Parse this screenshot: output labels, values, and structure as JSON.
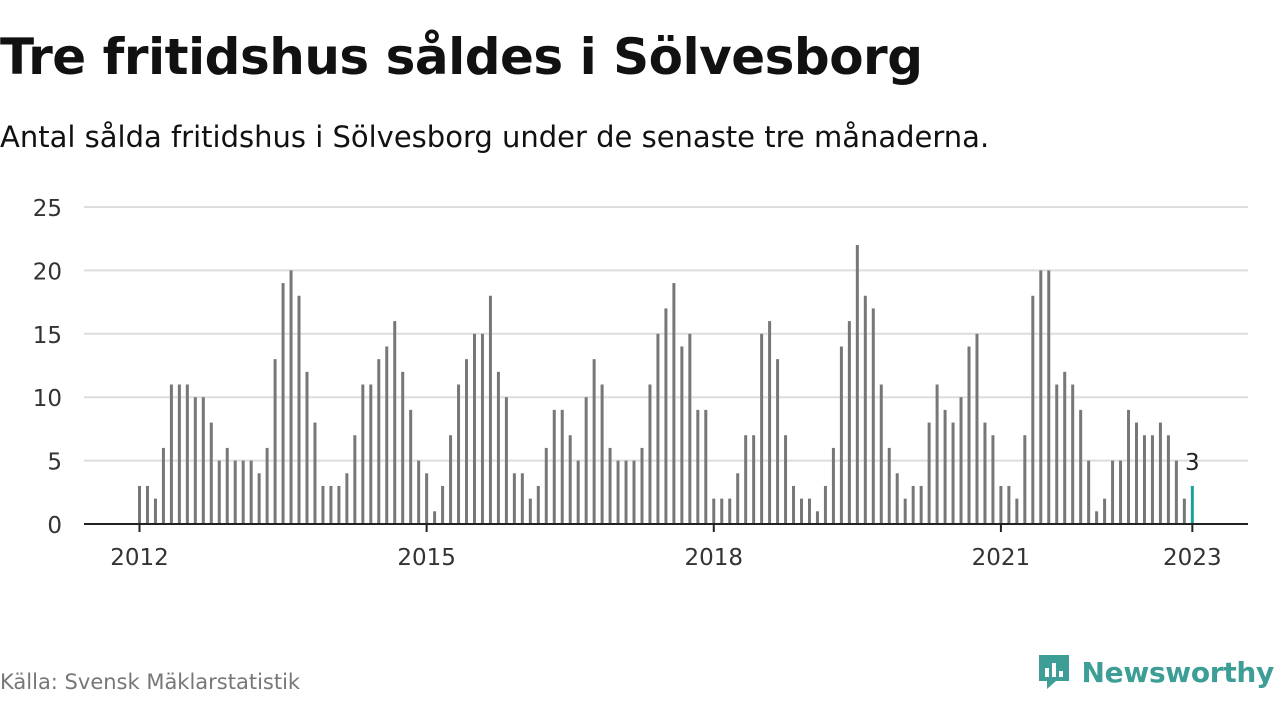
{
  "header": {
    "title": "Tre fritidshus såldes i Sölvesborg",
    "subtitle": "Antal sålda fritidshus i Sölvesborg under de senaste tre månaderna."
  },
  "footer": {
    "source": "Källa: Svensk Mäklarstatistik",
    "brand": "Newsworthy"
  },
  "colors": {
    "bar": "#777777",
    "highlight": "#1aa19a",
    "grid": "#dddddd",
    "axis": "#222222",
    "brand": "#3c9e96"
  },
  "icons": {
    "brand_logo": "newsworthy-logo-icon"
  },
  "chart_data": {
    "type": "bar",
    "title": "Tre fritidshus såldes i Sölvesborg",
    "subtitle": "Antal sålda fritidshus i Sölvesborg under de senaste tre månaderna.",
    "xlabel": "",
    "ylabel": "",
    "ylim": [
      0,
      25
    ],
    "yticks": [
      0,
      5,
      10,
      15,
      20,
      25
    ],
    "grid": true,
    "legend": "none",
    "frequency": "monthly",
    "x_start": "2012-01",
    "x_end": "2023-01",
    "xtick_labels": [
      "2012",
      "2015",
      "2018",
      "2021",
      "2023"
    ],
    "values": [
      3,
      3,
      2,
      6,
      11,
      11,
      11,
      10,
      10,
      8,
      5,
      6,
      5,
      5,
      5,
      4,
      6,
      13,
      19,
      20,
      18,
      12,
      8,
      3,
      3,
      3,
      4,
      7,
      11,
      11,
      13,
      14,
      16,
      12,
      9,
      5,
      4,
      1,
      3,
      7,
      11,
      13,
      15,
      15,
      18,
      12,
      10,
      4,
      4,
      2,
      3,
      6,
      9,
      9,
      7,
      5,
      10,
      13,
      11,
      6,
      5,
      5,
      5,
      6,
      11,
      15,
      17,
      19,
      14,
      15,
      9,
      9,
      2,
      2,
      2,
      4,
      7,
      7,
      15,
      16,
      13,
      7,
      3,
      2,
      2,
      1,
      3,
      6,
      14,
      16,
      22,
      18,
      17,
      11,
      6,
      4,
      2,
      3,
      3,
      8,
      11,
      9,
      8,
      10,
      14,
      15,
      8,
      7,
      3,
      3,
      2,
      7,
      18,
      20,
      20,
      11,
      12,
      11,
      9,
      5,
      1,
      2,
      5,
      5,
      9,
      8,
      7,
      7,
      8,
      7,
      5,
      2,
      3
    ],
    "highlight": {
      "label": "2023-01",
      "value": 3,
      "annotation": "3"
    }
  }
}
